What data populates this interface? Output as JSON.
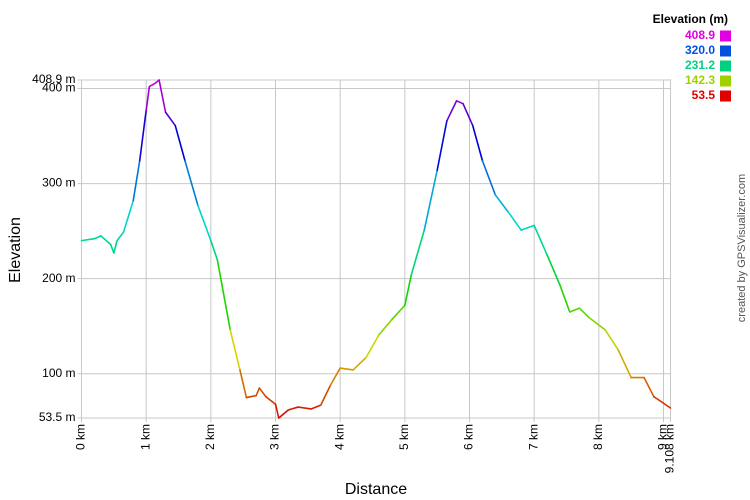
{
  "chart_data": {
    "type": "line",
    "x_label": "Distance",
    "y_label": "Elevation",
    "credit": "created by GPSVisualizer.com",
    "legend": {
      "title": "Elevation (m)",
      "values": [
        408.9,
        320,
        231.2,
        142.3,
        53.5
      ],
      "value_labels": [
        "408.9",
        "320.0",
        "231.2",
        "142.3",
        "53.5"
      ],
      "colors": [
        "#e000e0",
        "#0050e0",
        "#00d080",
        "#a0d000",
        "#e00000"
      ]
    },
    "xlim": [
      0,
      9.108
    ],
    "xticks": [
      {
        "value": 0,
        "label": "0 km"
      },
      {
        "value": 1,
        "label": "1 km"
      },
      {
        "value": 2,
        "label": "2 km"
      },
      {
        "value": 3,
        "label": "3 km"
      },
      {
        "value": 4,
        "label": "4 km"
      },
      {
        "value": 5,
        "label": "5 km"
      },
      {
        "value": 6,
        "label": "6 km"
      },
      {
        "value": 7,
        "label": "7 km"
      },
      {
        "value": 8,
        "label": "8 km"
      },
      {
        "value": 9,
        "label": "9 km"
      },
      {
        "value": 9.108,
        "label": "9.108 km"
      }
    ],
    "ylim": [
      53.5,
      408.9
    ],
    "yticks": [
      {
        "value": 53.5,
        "label": "53.5 m"
      },
      {
        "value": 100,
        "label": "100 m"
      },
      {
        "value": 200,
        "label": "200 m"
      },
      {
        "value": 300,
        "label": "300 m"
      },
      {
        "value": 400,
        "label": "400 m"
      },
      {
        "value": 408.9,
        "label": "408.9 m"
      }
    ],
    "grid": true,
    "series": [
      {
        "x": [
          0,
          0.2,
          0.3,
          0.45,
          0.5,
          0.55,
          0.65,
          0.8,
          0.9,
          1.0,
          1.05,
          1.15,
          1.2,
          1.3,
          1.45,
          1.6,
          1.8,
          2.0,
          2.1,
          2.3,
          2.45,
          2.55,
          2.7,
          2.75,
          2.85,
          3.0,
          3.05,
          3.2,
          3.35,
          3.55,
          3.7,
          3.85,
          4.0,
          4.2,
          4.4,
          4.6,
          4.8,
          5.0,
          5.1,
          5.3,
          5.5,
          5.65,
          5.8,
          5.9,
          6.05,
          6.2,
          6.4,
          6.6,
          6.8,
          7.0,
          7.2,
          7.4,
          7.55,
          7.7,
          7.85,
          8.1,
          8.3,
          8.5,
          8.7,
          8.85,
          9.108
        ],
        "values": [
          240,
          242,
          245,
          236,
          227,
          240,
          249,
          282,
          324,
          377,
          402,
          406,
          408.9,
          375,
          361,
          324,
          277,
          240,
          220,
          146,
          104,
          75,
          77,
          85,
          76,
          68,
          53.5,
          62,
          65,
          63,
          67,
          88,
          106,
          104,
          117,
          141,
          157,
          172,
          204,
          251,
          314,
          366,
          387,
          384,
          361,
          324,
          288,
          270,
          251,
          256,
          225,
          193,
          165,
          169,
          159,
          146,
          125,
          96,
          96,
          76,
          64
        ]
      }
    ]
  }
}
